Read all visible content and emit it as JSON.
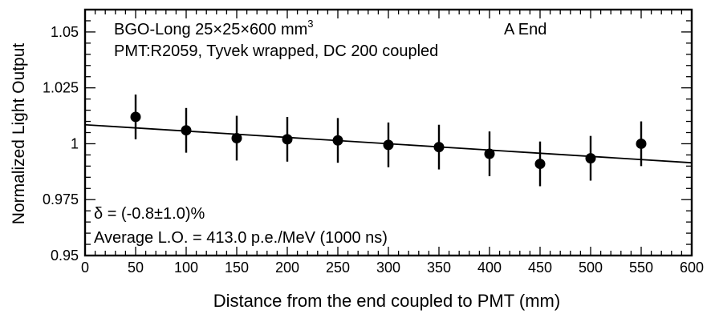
{
  "chart_data": {
    "type": "scatter",
    "title_lines": [
      {
        "text": "BGO-Long  25×25×600 mm",
        "sup": "3",
        "tail": "A End"
      },
      {
        "text": "PMT:R2059, Tyvek wrapped, DC 200 coupled"
      }
    ],
    "xlabel": "Distance from the end coupled to PMT (mm)",
    "ylabel": "Normalized Light Output",
    "xlim": [
      0,
      600
    ],
    "ylim": [
      0.95,
      1.06
    ],
    "xticks": [
      0,
      50,
      100,
      150,
      200,
      250,
      300,
      350,
      400,
      450,
      500,
      550,
      600
    ],
    "xtick_labels": [
      "0",
      "50",
      "100",
      "150",
      "200",
      "250",
      "300",
      "350",
      "400",
      "450",
      "500",
      "550",
      "600"
    ],
    "yticks": [
      0.95,
      0.975,
      1.0,
      1.025,
      1.05
    ],
    "ytick_labels": [
      "0.95",
      "0.975",
      "1",
      "1.025",
      "1.05"
    ],
    "series": [
      {
        "x": [
          50,
          100,
          150,
          200,
          250,
          300,
          350,
          400,
          450,
          500,
          550
        ],
        "y": [
          1.012,
          1.006,
          1.0025,
          1.002,
          1.0015,
          0.9995,
          0.9985,
          0.9955,
          0.991,
          0.9935,
          1.0
        ],
        "yerr": [
          0.01,
          0.01,
          0.01,
          0.01,
          0.01,
          0.01,
          0.01,
          0.01,
          0.01,
          0.01,
          0.01
        ]
      }
    ],
    "fit_line": {
      "x": [
        0,
        600
      ],
      "y": [
        1.0085,
        0.9915
      ]
    },
    "annotations": [
      "δ = (-0.8±1.0)%",
      "Average L.O. = 413.0 p.e./MeV (1000 ns)"
    ],
    "grid": false,
    "legend": "none"
  }
}
